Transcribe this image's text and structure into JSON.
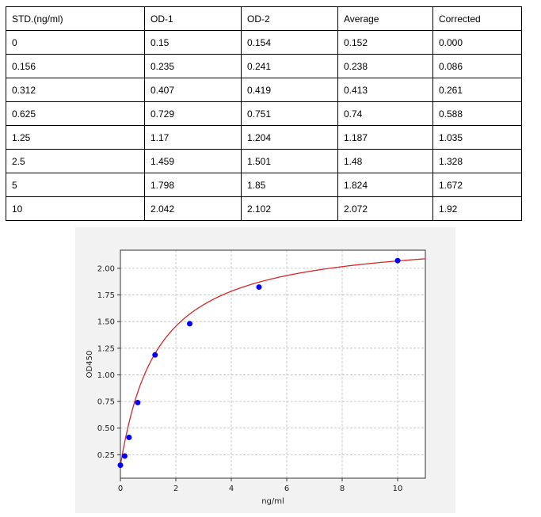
{
  "table": {
    "headers": [
      "STD.(ng/ml)",
      "OD-1",
      "OD-2",
      "Average",
      "Corrected"
    ],
    "rows": [
      [
        "0",
        "0.15",
        "0.154",
        "0.152",
        "0.000"
      ],
      [
        "0.156",
        "0.235",
        "0.241",
        "0.238",
        "0.086"
      ],
      [
        "0.312",
        "0.407",
        "0.419",
        "0.413",
        "0.261"
      ],
      [
        "0.625",
        "0.729",
        "0.751",
        "0.74",
        "0.588"
      ],
      [
        "1.25",
        "1.17",
        "1.204",
        "1.187",
        "1.035"
      ],
      [
        "2.5",
        "1.459",
        "1.501",
        "1.48",
        "1.328"
      ],
      [
        "5",
        "1.798",
        "1.85",
        "1.824",
        "1.672"
      ],
      [
        "10",
        "2.042",
        "2.102",
        "2.072",
        "1.92"
      ]
    ]
  },
  "chart_data": {
    "type": "scatter",
    "xlabel": "ng/ml",
    "ylabel": "OD450",
    "xlim": [
      0,
      11
    ],
    "ylim": [
      0.03,
      2.17
    ],
    "xticks": [
      "0",
      "2",
      "4",
      "6",
      "8",
      "10"
    ],
    "yticks": [
      "0.25",
      "0.50",
      "0.75",
      "1.00",
      "1.25",
      "1.50",
      "1.75",
      "2.00"
    ],
    "grid": true,
    "points": {
      "x": [
        0,
        0.156,
        0.312,
        0.625,
        1.25,
        2.5,
        5,
        10
      ],
      "y": [
        0.152,
        0.238,
        0.413,
        0.74,
        1.187,
        1.48,
        1.824,
        2.072
      ]
    },
    "point_color": "#0000ff",
    "curve_color": "#d62728"
  }
}
